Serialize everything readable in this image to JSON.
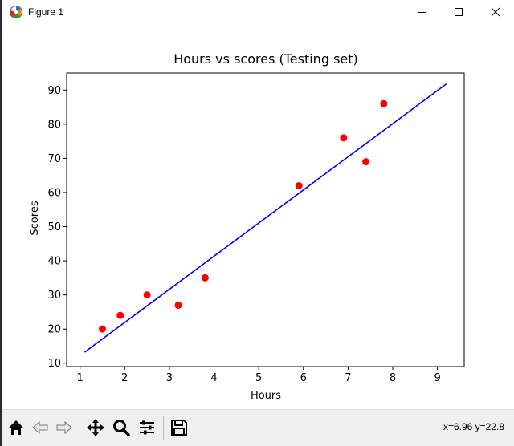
{
  "window": {
    "title": "Figure 1",
    "icon": "matplotlib-figure-icon",
    "controls": [
      "minimize-icon",
      "maximize-icon",
      "close-icon"
    ]
  },
  "toolbar": {
    "buttons": [
      "home-icon",
      "back-arrow-icon",
      "forward-arrow-icon",
      "pan-icon",
      "zoom-icon",
      "configure-subplots-icon",
      "save-icon"
    ],
    "coords": "x=6.96 y=22.8"
  },
  "chart_data": {
    "type": "scatter",
    "title": "Hours vs scores (Testing set)",
    "xlabel": "Hours",
    "ylabel": "Scores",
    "xlim": [
      0.7,
      9.6
    ],
    "ylim": [
      9,
      95
    ],
    "xticks": [
      1,
      2,
      3,
      4,
      5,
      6,
      7,
      8,
      9
    ],
    "yticks": [
      10,
      20,
      30,
      40,
      50,
      60,
      70,
      80,
      90
    ],
    "grid": false,
    "points": {
      "color": "#ff0000",
      "x": [
        1.5,
        1.9,
        2.5,
        3.2,
        3.8,
        5.9,
        6.9,
        7.4,
        7.8
      ],
      "y": [
        20,
        24,
        30,
        27,
        35,
        62,
        76,
        69,
        86
      ]
    },
    "line": {
      "color": "#0000ff",
      "x": [
        1.1,
        9.2
      ],
      "y": [
        13.2,
        91.8
      ]
    }
  }
}
